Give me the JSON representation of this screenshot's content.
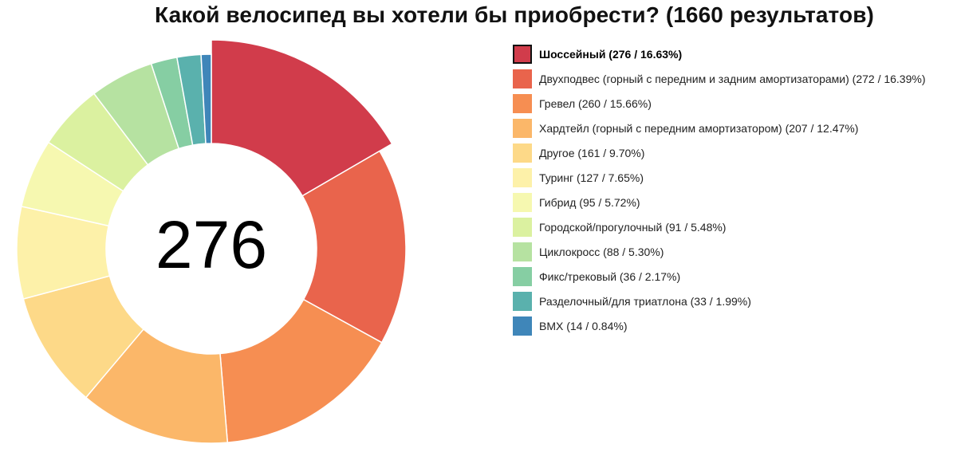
{
  "title": "Какой велосипед вы хотели бы приобрести? (1660 результатов)",
  "center_value": "276",
  "chart_data": {
    "type": "pie",
    "subtype": "donut",
    "title": "Какой велосипед вы хотели бы приобрести? (1660 результатов)",
    "total": 1660,
    "highlighted_index": 0,
    "legend_position": "right",
    "slices": [
      {
        "label": "Шоссейный (276 / 16.63%)",
        "name": "Шоссейный",
        "value": 276,
        "percent": 16.63,
        "color": "#d13c4b"
      },
      {
        "label": "Двухподвес (горный с передним и задним амортизаторами) (272 / 16.39%)",
        "name": "Двухподвес (горный с передним и задним амортизаторами)",
        "value": 272,
        "percent": 16.39,
        "color": "#e9644c"
      },
      {
        "label": "Гревел (260 / 15.66%)",
        "name": "Гревел",
        "value": 260,
        "percent": 15.66,
        "color": "#f68e52"
      },
      {
        "label": "Хардтейл (горный с передним амортизатором) (207 / 12.47%)",
        "name": "Хардтейл (горный с передним амортизатором)",
        "value": 207,
        "percent": 12.47,
        "color": "#fbb769"
      },
      {
        "label": "Другое (161 / 9.70%)",
        "name": "Другое",
        "value": 161,
        "percent": 9.7,
        "color": "#fdd988"
      },
      {
        "label": "Туринг (127 / 7.65%)",
        "name": "Туринг",
        "value": 127,
        "percent": 7.65,
        "color": "#fdf1a9"
      },
      {
        "label": "Гибрид (95 / 5.72%)",
        "name": "Гибрид",
        "value": 95,
        "percent": 5.72,
        "color": "#f6f8b0"
      },
      {
        "label": "Городской/прогулочный (91 / 5.48%)",
        "name": "Городской/прогулочный",
        "value": 91,
        "percent": 5.48,
        "color": "#dbf1a0"
      },
      {
        "label": "Циклокросс (88 / 5.30%)",
        "name": "Циклокросс",
        "value": 88,
        "percent": 5.3,
        "color": "#b6e2a1"
      },
      {
        "label": "Фикс/трековый (36 / 2.17%)",
        "name": "Фикс/трековый",
        "value": 36,
        "percent": 2.17,
        "color": "#86cea3"
      },
      {
        "label": "Разделочный/для триатлона (33 / 1.99%)",
        "name": "Разделочный/для триатлона",
        "value": 33,
        "percent": 1.99,
        "color": "#5ab1ad"
      },
      {
        "label": "BMX (14 / 0.84%)",
        "name": "BMX",
        "value": 14,
        "percent": 0.84,
        "color": "#3f86b9"
      }
    ]
  }
}
